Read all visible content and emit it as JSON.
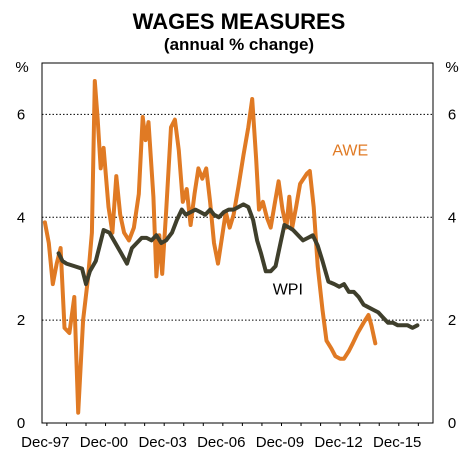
{
  "chart_data": {
    "type": "line",
    "title": "WAGES MEASURES",
    "subtitle": "(annual % change)",
    "left_unit": "%",
    "right_unit": "%",
    "ylim": [
      0,
      7
    ],
    "yticks": [
      0,
      2,
      4,
      6
    ],
    "xlim": [
      1997.75,
      2017.75
    ],
    "xtick_labels": [
      {
        "label": "Dec-97",
        "x": 1997.92
      },
      {
        "label": "Dec-00",
        "x": 2000.92
      },
      {
        "label": "Dec-03",
        "x": 2003.92
      },
      {
        "label": "Dec-06",
        "x": 2006.92
      },
      {
        "label": "Dec-09",
        "x": 2009.92
      },
      {
        "label": "Dec-12",
        "x": 2012.92
      },
      {
        "label": "Dec-15",
        "x": 2015.92
      }
    ],
    "grid": true,
    "colors": {
      "AWE": "#E07A24",
      "WPI": "#3F3F2C",
      "grid": "#000000"
    },
    "series": [
      {
        "name": "AWE",
        "label_x": 2012.6,
        "label_y": 5.2,
        "points": [
          [
            1997.9,
            3.9
          ],
          [
            1998.1,
            3.5
          ],
          [
            1998.3,
            2.7
          ],
          [
            1998.5,
            3.1
          ],
          [
            1998.7,
            3.4
          ],
          [
            1998.9,
            1.85
          ],
          [
            1999.15,
            1.75
          ],
          [
            1999.4,
            2.45
          ],
          [
            1999.6,
            0.2
          ],
          [
            1999.85,
            2.0
          ],
          [
            2000.1,
            2.8
          ],
          [
            2000.3,
            3.7
          ],
          [
            2000.45,
            6.65
          ],
          [
            2000.6,
            5.9
          ],
          [
            2000.75,
            4.95
          ],
          [
            2000.9,
            5.35
          ],
          [
            2001.15,
            4.2
          ],
          [
            2001.35,
            3.7
          ],
          [
            2001.55,
            4.8
          ],
          [
            2001.75,
            4.05
          ],
          [
            2001.95,
            3.7
          ],
          [
            2002.2,
            3.55
          ],
          [
            2002.45,
            3.8
          ],
          [
            2002.7,
            4.45
          ],
          [
            2002.9,
            5.95
          ],
          [
            2003.05,
            5.5
          ],
          [
            2003.2,
            5.85
          ],
          [
            2003.45,
            4.4
          ],
          [
            2003.6,
            2.85
          ],
          [
            2003.75,
            3.65
          ],
          [
            2003.9,
            2.9
          ],
          [
            2004.1,
            4.1
          ],
          [
            2004.35,
            5.75
          ],
          [
            2004.55,
            5.9
          ],
          [
            2004.75,
            5.3
          ],
          [
            2004.95,
            4.3
          ],
          [
            2005.15,
            4.55
          ],
          [
            2005.35,
            3.85
          ],
          [
            2005.55,
            4.45
          ],
          [
            2005.75,
            4.95
          ],
          [
            2005.95,
            4.75
          ],
          [
            2006.15,
            4.95
          ],
          [
            2006.35,
            4.3
          ],
          [
            2006.55,
            3.5
          ],
          [
            2006.75,
            3.1
          ],
          [
            2006.95,
            3.6
          ],
          [
            2007.15,
            4.1
          ],
          [
            2007.35,
            3.8
          ],
          [
            2007.55,
            4.05
          ],
          [
            2007.8,
            4.6
          ],
          [
            2008.05,
            5.2
          ],
          [
            2008.3,
            5.75
          ],
          [
            2008.5,
            6.3
          ],
          [
            2008.7,
            5.15
          ],
          [
            2008.85,
            4.15
          ],
          [
            2009.05,
            4.3
          ],
          [
            2009.25,
            4.0
          ],
          [
            2009.45,
            3.8
          ],
          [
            2009.65,
            4.25
          ],
          [
            2009.85,
            4.7
          ],
          [
            2010.05,
            4.15
          ],
          [
            2010.25,
            3.8
          ],
          [
            2010.4,
            4.4
          ],
          [
            2010.55,
            3.8
          ],
          [
            2010.75,
            4.2
          ],
          [
            2010.95,
            4.65
          ],
          [
            2011.3,
            4.85
          ],
          [
            2011.45,
            4.9
          ],
          [
            2011.65,
            4.2
          ],
          [
            2011.85,
            3.05
          ],
          [
            2012.1,
            2.2
          ],
          [
            2012.3,
            1.6
          ],
          [
            2012.55,
            1.45
          ],
          [
            2012.75,
            1.3
          ],
          [
            2013.0,
            1.25
          ],
          [
            2013.2,
            1.25
          ],
          [
            2013.45,
            1.4
          ],
          [
            2013.65,
            1.55
          ],
          [
            2013.9,
            1.75
          ],
          [
            2014.2,
            1.95
          ],
          [
            2014.45,
            2.1
          ],
          [
            2014.6,
            1.9
          ],
          [
            2014.8,
            1.55
          ]
        ]
      },
      {
        "name": "WPI",
        "label_x": 2009.55,
        "label_y": 2.5,
        "points": [
          [
            1998.6,
            3.3
          ],
          [
            1998.8,
            3.15
          ],
          [
            1999.0,
            3.1
          ],
          [
            1999.4,
            3.05
          ],
          [
            1999.8,
            3.0
          ],
          [
            2000.0,
            2.7
          ],
          [
            2000.2,
            2.95
          ],
          [
            2000.5,
            3.15
          ],
          [
            2000.7,
            3.45
          ],
          [
            2000.9,
            3.75
          ],
          [
            2001.2,
            3.7
          ],
          [
            2001.5,
            3.5
          ],
          [
            2001.8,
            3.3
          ],
          [
            2002.1,
            3.1
          ],
          [
            2002.35,
            3.4
          ],
          [
            2002.6,
            3.5
          ],
          [
            2002.85,
            3.6
          ],
          [
            2003.1,
            3.6
          ],
          [
            2003.35,
            3.55
          ],
          [
            2003.6,
            3.65
          ],
          [
            2003.85,
            3.5
          ],
          [
            2004.1,
            3.55
          ],
          [
            2004.4,
            3.7
          ],
          [
            2004.65,
            3.95
          ],
          [
            2004.9,
            4.15
          ],
          [
            2005.1,
            4.05
          ],
          [
            2005.35,
            4.1
          ],
          [
            2005.6,
            4.15
          ],
          [
            2005.85,
            4.1
          ],
          [
            2006.1,
            4.05
          ],
          [
            2006.35,
            4.15
          ],
          [
            2006.55,
            4.05
          ],
          [
            2006.8,
            4.0
          ],
          [
            2007.05,
            4.1
          ],
          [
            2007.3,
            4.15
          ],
          [
            2007.55,
            4.15
          ],
          [
            2007.8,
            4.2
          ],
          [
            2008.05,
            4.25
          ],
          [
            2008.3,
            4.2
          ],
          [
            2008.55,
            3.95
          ],
          [
            2008.75,
            3.55
          ],
          [
            2008.95,
            3.3
          ],
          [
            2009.2,
            2.95
          ],
          [
            2009.45,
            2.95
          ],
          [
            2009.7,
            3.05
          ],
          [
            2009.95,
            3.5
          ],
          [
            2010.15,
            3.85
          ],
          [
            2010.4,
            3.8
          ],
          [
            2010.6,
            3.75
          ],
          [
            2010.85,
            3.65
          ],
          [
            2011.1,
            3.55
          ],
          [
            2011.35,
            3.6
          ],
          [
            2011.6,
            3.65
          ],
          [
            2011.85,
            3.45
          ],
          [
            2012.1,
            3.15
          ],
          [
            2012.4,
            2.75
          ],
          [
            2012.7,
            2.7
          ],
          [
            2012.95,
            2.65
          ],
          [
            2013.2,
            2.7
          ],
          [
            2013.45,
            2.55
          ],
          [
            2013.7,
            2.55
          ],
          [
            2013.95,
            2.45
          ],
          [
            2014.2,
            2.3
          ],
          [
            2014.45,
            2.25
          ],
          [
            2014.7,
            2.2
          ],
          [
            2014.95,
            2.15
          ],
          [
            2015.2,
            2.05
          ],
          [
            2015.45,
            1.95
          ],
          [
            2015.7,
            1.95
          ],
          [
            2015.95,
            1.9
          ],
          [
            2016.2,
            1.9
          ],
          [
            2016.45,
            1.9
          ],
          [
            2016.7,
            1.85
          ],
          [
            2016.95,
            1.9
          ]
        ]
      }
    ]
  }
}
